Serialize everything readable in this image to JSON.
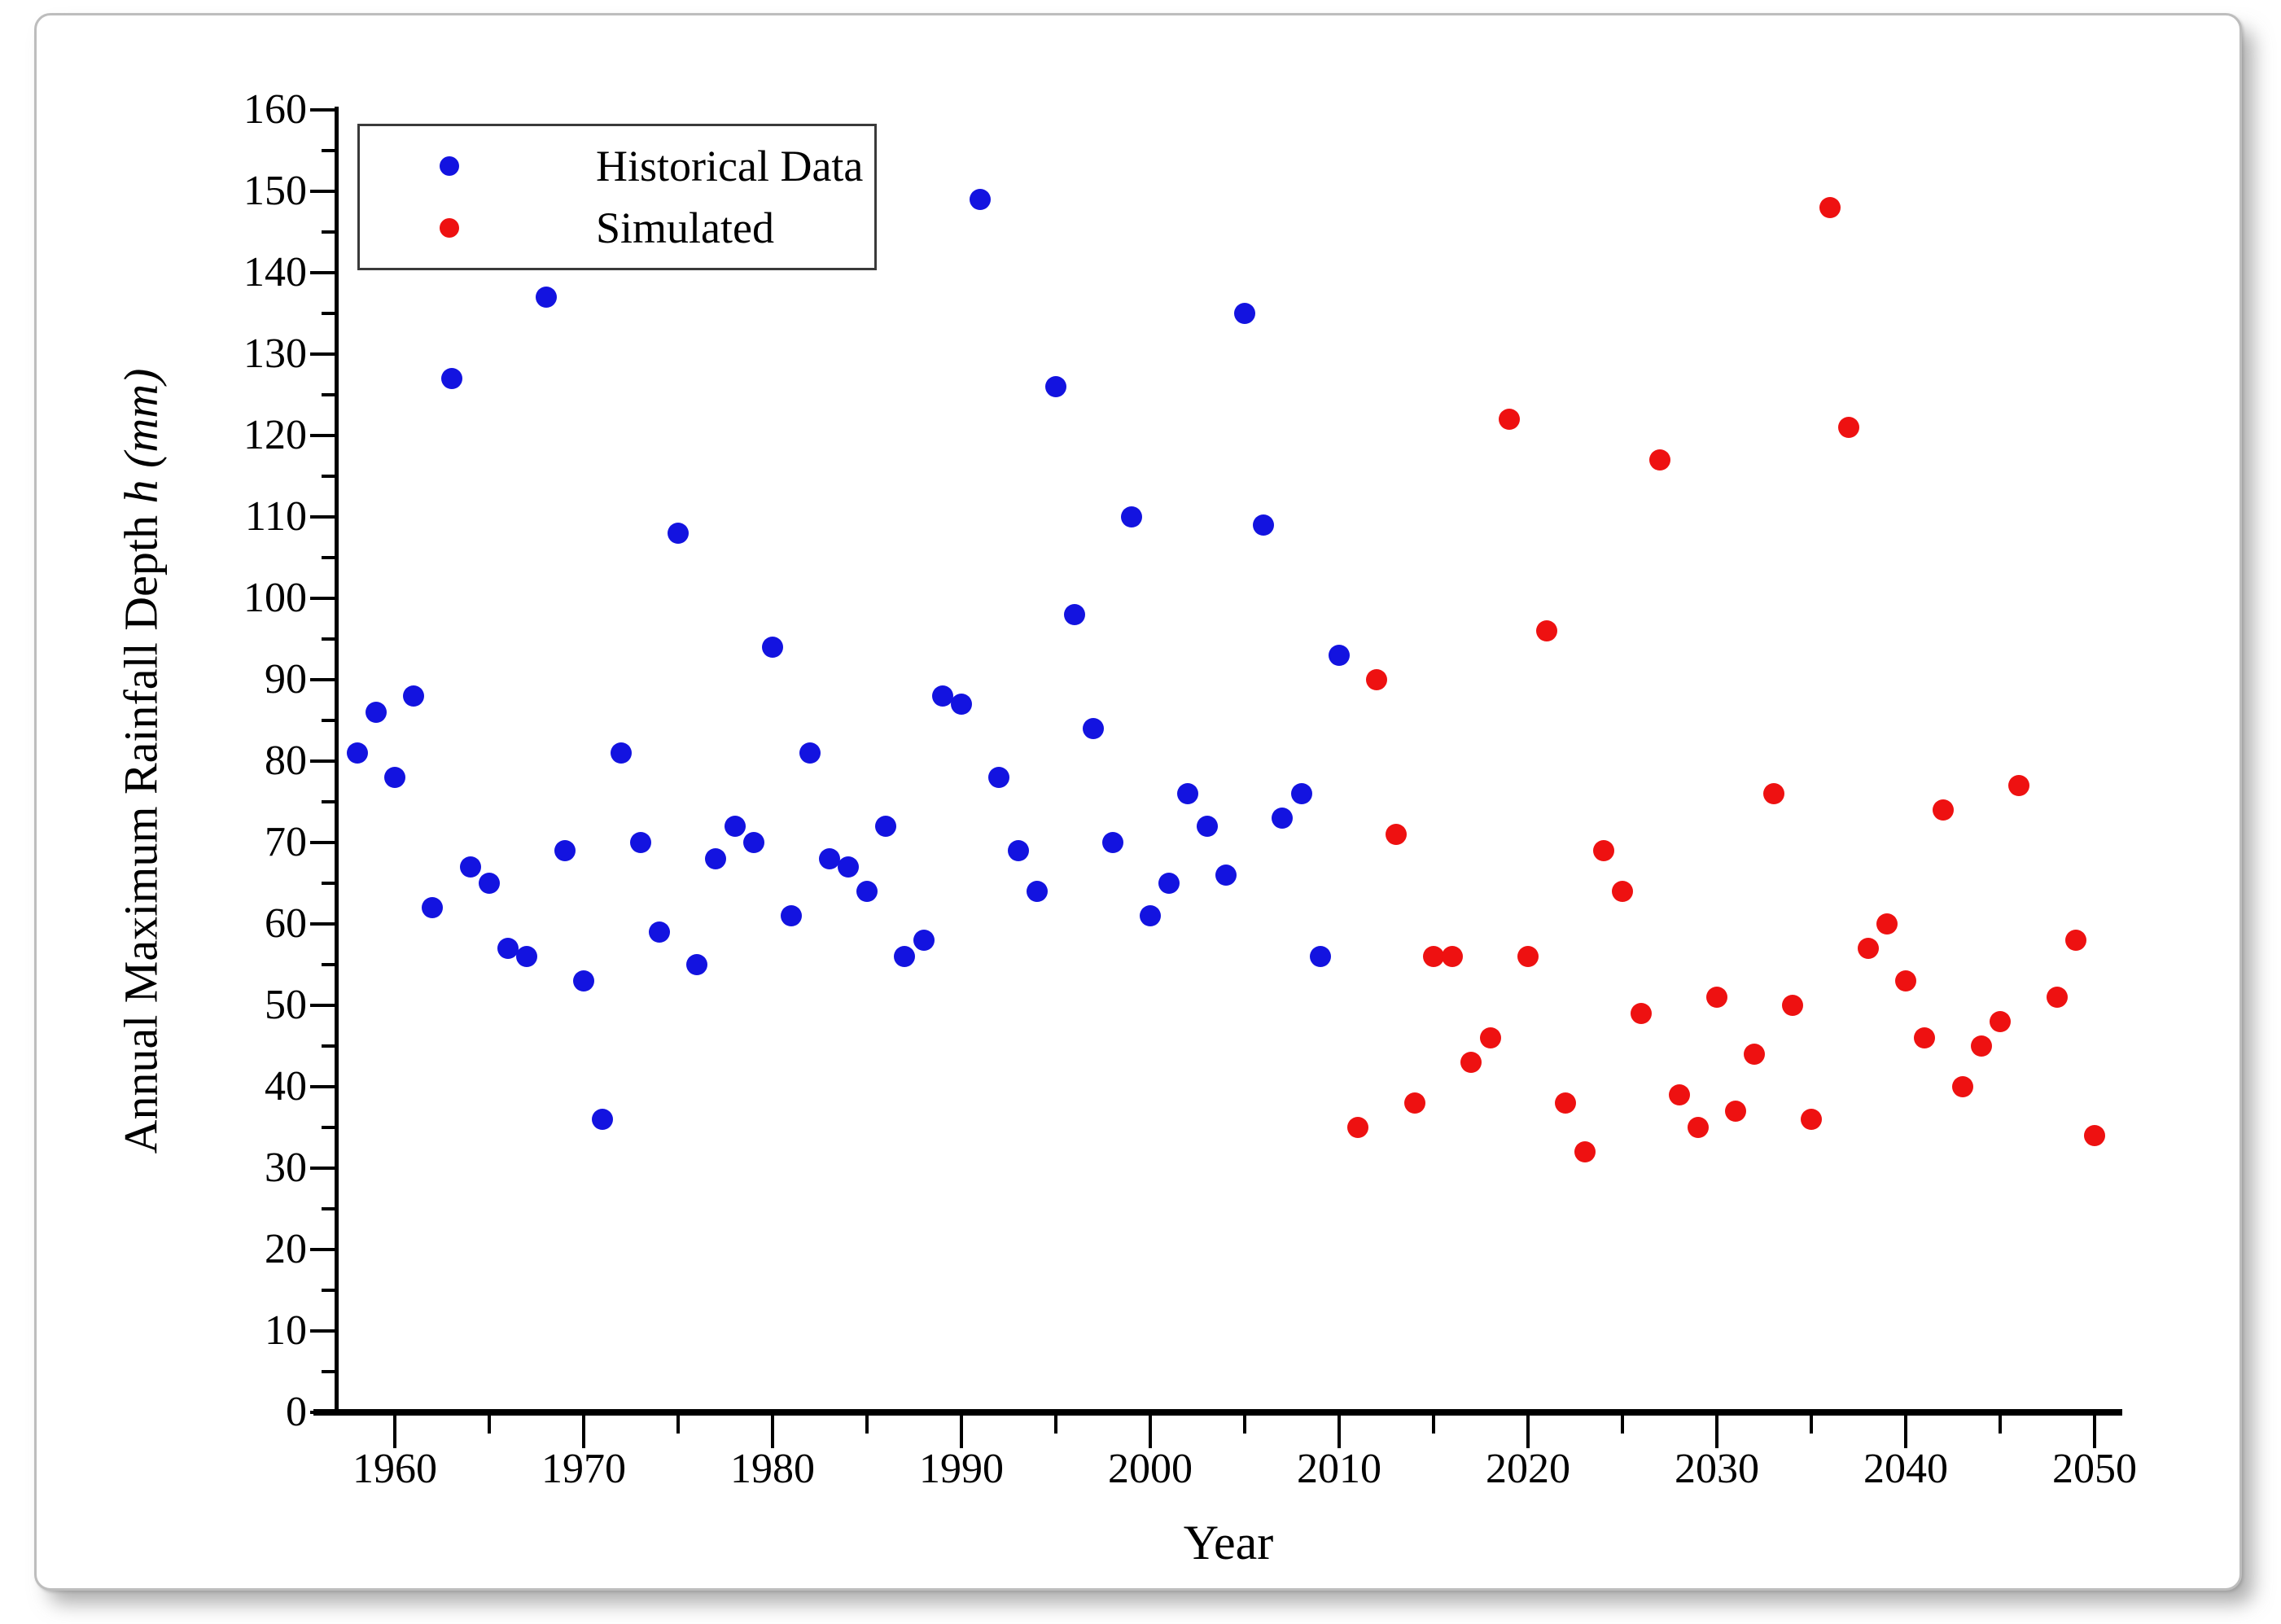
{
  "chart_data": {
    "type": "scatter",
    "title": "",
    "xlabel": "Year",
    "ylabel": {
      "main": "Annual Maximum Rainfall Depth",
      "var": "h",
      "unit": "(mm)"
    },
    "xlim": [
      1956.9,
      2051.4
    ],
    "ylim": [
      0,
      160
    ],
    "x_major_tick_start": 1960,
    "x_major_tick_end": 2050,
    "x_major_step": 10,
    "x_minor_step": 5,
    "y_major_step": 10,
    "y_minor_step": 5,
    "grid": "off",
    "legend_position": "upper-left",
    "legend": [
      {
        "label": "Historical Data",
        "color": "#1313e0"
      },
      {
        "label": "Simulated",
        "color": "#ee1111"
      }
    ],
    "series": [
      {
        "name": "Historical Data",
        "color": "#1313e0",
        "points": [
          [
            1958,
            81
          ],
          [
            1959,
            86
          ],
          [
            1960,
            78
          ],
          [
            1961,
            88
          ],
          [
            1962,
            62
          ],
          [
            1963,
            127
          ],
          [
            1964,
            67
          ],
          [
            1965,
            65
          ],
          [
            1966,
            57
          ],
          [
            1967,
            56
          ],
          [
            1968,
            137
          ],
          [
            1969,
            69
          ],
          [
            1970,
            53
          ],
          [
            1971,
            36
          ],
          [
            1972,
            81
          ],
          [
            1973,
            70
          ],
          [
            1974,
            59
          ],
          [
            1975,
            108
          ],
          [
            1976,
            55
          ],
          [
            1977,
            68
          ],
          [
            1978,
            72
          ],
          [
            1979,
            70
          ],
          [
            1980,
            94
          ],
          [
            1981,
            61
          ],
          [
            1982,
            81
          ],
          [
            1983,
            68
          ],
          [
            1984,
            67
          ],
          [
            1985,
            64
          ],
          [
            1986,
            72
          ],
          [
            1987,
            56
          ],
          [
            1988,
            58
          ],
          [
            1989,
            88
          ],
          [
            1990,
            87
          ],
          [
            1991,
            149
          ],
          [
            1992,
            78
          ],
          [
            1993,
            69
          ],
          [
            1994,
            64
          ],
          [
            1995,
            126
          ],
          [
            1996,
            98
          ],
          [
            1997,
            84
          ],
          [
            1998,
            70
          ],
          [
            1999,
            110
          ],
          [
            2000,
            61
          ],
          [
            2001,
            65
          ],
          [
            2002,
            76
          ],
          [
            2003,
            72
          ],
          [
            2004,
            66
          ],
          [
            2005,
            135
          ],
          [
            2006,
            109
          ],
          [
            2007,
            73
          ],
          [
            2008,
            76
          ],
          [
            2009,
            56
          ],
          [
            2010,
            93
          ]
        ]
      },
      {
        "name": "Simulated",
        "color": "#ee1111",
        "points": [
          [
            2011,
            35
          ],
          [
            2012,
            90
          ],
          [
            2013,
            71
          ],
          [
            2014,
            38
          ],
          [
            2015,
            56
          ],
          [
            2016,
            56
          ],
          [
            2017,
            43
          ],
          [
            2018,
            46
          ],
          [
            2019,
            122
          ],
          [
            2020,
            56
          ],
          [
            2021,
            96
          ],
          [
            2022,
            38
          ],
          [
            2023,
            32
          ],
          [
            2024,
            69
          ],
          [
            2025,
            64
          ],
          [
            2026,
            49
          ],
          [
            2027,
            117
          ],
          [
            2028,
            39
          ],
          [
            2029,
            35
          ],
          [
            2030,
            51
          ],
          [
            2031,
            37
          ],
          [
            2032,
            44
          ],
          [
            2033,
            76
          ],
          [
            2034,
            50
          ],
          [
            2035,
            36
          ],
          [
            2036,
            148
          ],
          [
            2037,
            121
          ],
          [
            2038,
            57
          ],
          [
            2039,
            60
          ],
          [
            2040,
            53
          ],
          [
            2041,
            46
          ],
          [
            2042,
            74
          ],
          [
            2043,
            40
          ],
          [
            2044,
            45
          ],
          [
            2045,
            48
          ],
          [
            2046,
            77
          ],
          [
            2048,
            51
          ],
          [
            2049,
            58
          ],
          [
            2050,
            34
          ]
        ]
      }
    ]
  }
}
